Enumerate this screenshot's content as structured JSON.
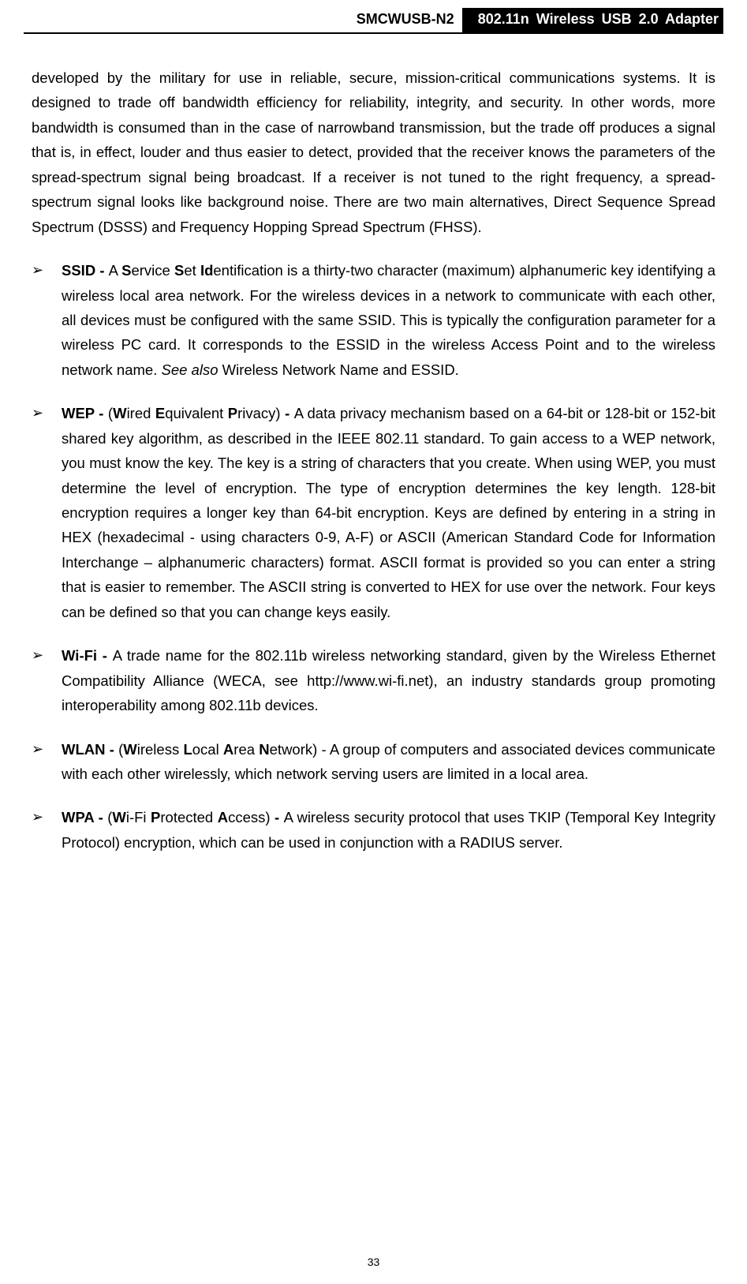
{
  "header": {
    "model": "SMCWUSB-N2",
    "title": "802.11n Wireless USB 2.0 Adapter"
  },
  "intro": "developed by the military for use in reliable, secure, mission-critical communications systems. It is designed to trade off bandwidth efficiency for reliability, integrity, and security. In other words, more bandwidth is consumed than in the case of narrowband transmission, but the trade off produces a signal that is, in effect, louder and thus easier to detect, provided that the receiver knows the parameters of the spread-spectrum signal being broadcast. If a receiver is not tuned to the right frequency, a spread-spectrum signal looks like background noise. There are two main alternatives, Direct Sequence Spread Spectrum (DSSS) and Frequency Hopping Spread Spectrum (FHSS).",
  "items": {
    "ssid": {
      "term": "SSID - ",
      "p1": "A ",
      "s": "S",
      "p2": "ervice ",
      "s2": "S",
      "p3": "et ",
      "id": "Id",
      "body": "entification is a thirty-two character (maximum) alphanumeric key identifying a wireless local area network. For the wireless devices in a network to communicate with each other, all devices must be configured with the same SSID. This is typically the configuration parameter for a wireless PC card. It corresponds to the ESSID in the wireless Access Point and to the wireless network name. ",
      "seealso": "See also",
      "tail": " Wireless Network Name and ESSID."
    },
    "wep": {
      "term": "WEP - ",
      "open": "(",
      "w": "W",
      "p1": "ired ",
      "e": "E",
      "p2": "quivalent ",
      "p": "P",
      "p3": "rivacy) ",
      "dash": "- ",
      "body": "A data privacy mechanism based on a 64-bit or 128-bit or 152-bit shared key algorithm, as described in the IEEE 802.11 standard. To gain access to a WEP network, you must know the key. The key is a string of characters that you create. When using WEP, you must determine the level of encryption. The type of encryption determines the key length. 128-bit encryption requires a longer key than 64-bit encryption. Keys are defined by entering in a string in HEX (hexadecimal - using characters 0-9, A-F) or ASCII (American Standard Code for Information Interchange – alphanumeric characters) format. ASCII format is provided so you can enter a string that is easier to remember. The ASCII string is converted to HEX for use over the network. Four keys can be defined so that you can change keys easily."
    },
    "wifi": {
      "term": "Wi-Fi - ",
      "body": "A trade name for the 802.11b wireless networking standard, given by the Wireless Ethernet Compatibility Alliance (WECA, see http://www.wi-fi.net), an industry standards group promoting interoperability among 802.11b devices."
    },
    "wlan": {
      "term": "WLAN - ",
      "open": "(",
      "w": "W",
      "p1": "ireless ",
      "l": "L",
      "p2": "ocal ",
      "a": "A",
      "p3": "rea ",
      "n": "N",
      "p4": "etwork) - ",
      "body": "A group of computers and associated devices communicate with each other wirelessly, which network serving users are limited in a local area."
    },
    "wpa": {
      "term": "WPA - ",
      "open": "(",
      "w": "W",
      "p1": "i-Fi ",
      "p": "P",
      "p2": "rotected ",
      "a": "A",
      "p3": "ccess) ",
      "dash": "- ",
      "body": "A wireless security protocol that uses TKIP (Temporal Key Integrity Protocol) encryption, which can be used in conjunction with a RADIUS server."
    }
  },
  "page_number": "33"
}
